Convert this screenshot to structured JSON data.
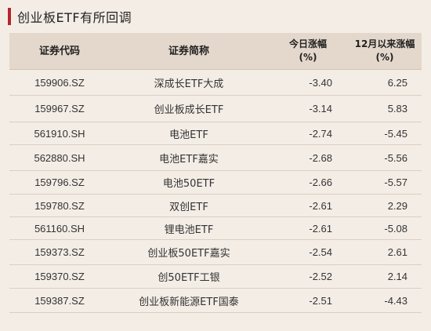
{
  "title": "创业板ETF有所回调",
  "headers": {
    "code": "证券代码",
    "name": "证券简称",
    "today": "今日涨幅",
    "today_unit": "(%)",
    "since_dec": "12月以来涨幅",
    "since_dec_unit": "(%)"
  },
  "rows": [
    {
      "code": "159906.SZ",
      "name": "深成长ETF大成",
      "today": "-3.40",
      "since": "6.25"
    },
    {
      "code": "159967.SZ",
      "name": "创业板成长ETF",
      "today": "-3.14",
      "since": "5.83"
    },
    {
      "code": "561910.SH",
      "name": "电池ETF",
      "today": "-2.74",
      "since": "-5.45"
    },
    {
      "code": "562880.SH",
      "name": "电池ETF嘉实",
      "today": "-2.68",
      "since": "-5.56"
    },
    {
      "code": "159796.SZ",
      "name": "电池50ETF",
      "today": "-2.66",
      "since": "-5.57"
    },
    {
      "code": "159780.SZ",
      "name": "双创ETF",
      "today": "-2.61",
      "since": "2.29"
    },
    {
      "code": "561160.SH",
      "name": "锂电池ETF",
      "today": "-2.61",
      "since": "-5.08"
    },
    {
      "code": "159373.SZ",
      "name": "创业板50ETF嘉实",
      "today": "-2.54",
      "since": "2.61"
    },
    {
      "code": "159370.SZ",
      "name": "创50ETF工银",
      "today": "-2.52",
      "since": "2.14"
    },
    {
      "code": "159387.SZ",
      "name": "创业板新能源ETF国泰",
      "today": "-2.51",
      "since": "-4.43"
    }
  ],
  "colors": {
    "background": "#f3ede6",
    "header_bg": "#e4d8cc",
    "accent": "#b3262d"
  }
}
